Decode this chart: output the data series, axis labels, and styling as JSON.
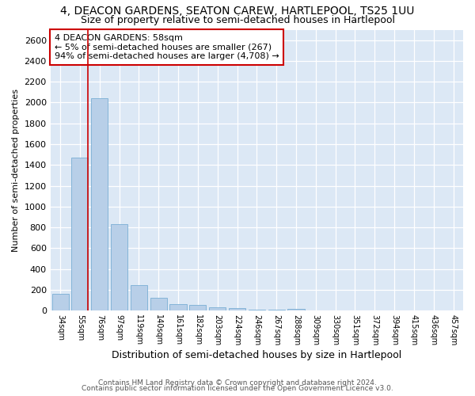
{
  "title1": "4, DEACON GARDENS, SEATON CAREW, HARTLEPOOL, TS25 1UU",
  "title2": "Size of property relative to semi-detached houses in Hartlepool",
  "xlabel": "Distribution of semi-detached houses by size in Hartlepool",
  "ylabel": "Number of semi-detached properties",
  "categories": [
    "34sqm",
    "55sqm",
    "76sqm",
    "97sqm",
    "119sqm",
    "140sqm",
    "161sqm",
    "182sqm",
    "203sqm",
    "224sqm",
    "246sqm",
    "267sqm",
    "288sqm",
    "309sqm",
    "330sqm",
    "351sqm",
    "372sqm",
    "394sqm",
    "415sqm",
    "436sqm",
    "457sqm"
  ],
  "values": [
    160,
    1470,
    2040,
    830,
    245,
    120,
    65,
    55,
    32,
    25,
    10,
    8,
    20,
    2,
    0,
    0,
    0,
    0,
    0,
    0,
    0
  ],
  "bar_color": "#b8cfe8",
  "bar_edge_color": "#7aaed4",
  "annotation_line1": "4 DEACON GARDENS: 58sqm",
  "annotation_line2": "← 5% of semi-detached houses are smaller (267)",
  "annotation_line3": "94% of semi-detached houses are larger (4,708) →",
  "annotation_box_color": "#ffffff",
  "annotation_box_edge": "#cc0000",
  "red_line_color": "#cc0000",
  "ylim": [
    0,
    2700
  ],
  "yticks": [
    0,
    200,
    400,
    600,
    800,
    1000,
    1200,
    1400,
    1600,
    1800,
    2000,
    2200,
    2400,
    2600
  ],
  "footer1": "Contains HM Land Registry data © Crown copyright and database right 2024.",
  "footer2": "Contains public sector information licensed under the Open Government Licence v3.0.",
  "fig_bg_color": "#ffffff",
  "plot_bg_color": "#dce8f5"
}
